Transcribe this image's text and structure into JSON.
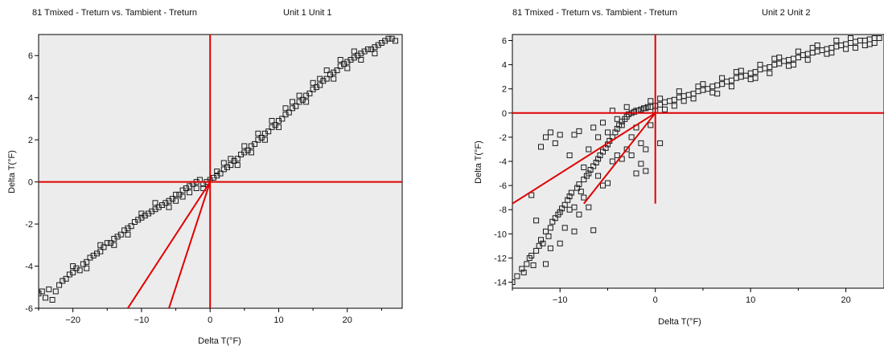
{
  "charts": [
    {
      "title": "81 Tmixed - Treturn  vs.  Tambient - Treturn",
      "unit_label": "Unit 1  Unit 1"
    },
    {
      "title": "81 Tmixed - Treturn  vs.  Tambient - Treturn",
      "unit_label": "Unit 2  Unit 2"
    }
  ],
  "colors": {
    "plot_background": "#ececec",
    "reference_lines": "#e00000",
    "markers": "#1a1a1a"
  },
  "chart_data": [
    {
      "type": "scatter",
      "title": "81 Tmixed - Treturn  vs.  Tambient - Treturn",
      "subtitle": "Unit 1  Unit 1",
      "xlabel": "Delta T(°F)",
      "ylabel": "Delta T(°F)",
      "xlim": [
        -25,
        28
      ],
      "ylim": [
        -6,
        7
      ],
      "xticks": [
        -20,
        -10,
        0,
        10,
        20
      ],
      "yticks": [
        -6,
        -4,
        -2,
        0,
        2,
        4,
        6
      ],
      "grid": false,
      "marker": "square-open",
      "reference_lines": [
        {
          "kind": "vertical",
          "x": 0
        },
        {
          "kind": "horizontal",
          "y": 0
        },
        {
          "kind": "segment",
          "from": [
            0,
            0
          ],
          "to": [
            -12,
            -6
          ]
        },
        {
          "kind": "segment",
          "from": [
            0,
            0
          ],
          "to": [
            -6,
            -6
          ]
        }
      ],
      "points": [
        [
          -25,
          -5.3
        ],
        [
          -24.5,
          -5.2
        ],
        [
          -24,
          -5.5
        ],
        [
          -23.5,
          -5.1
        ],
        [
          -23,
          -5.6
        ],
        [
          -22.5,
          -5.2
        ],
        [
          -22,
          -4.9
        ],
        [
          -21.5,
          -4.7
        ],
        [
          -21,
          -4.6
        ],
        [
          -20.5,
          -4.4
        ],
        [
          -20,
          -4.3
        ],
        [
          -19.5,
          -4.1
        ],
        [
          -19,
          -4.2
        ],
        [
          -18.5,
          -3.9
        ],
        [
          -18,
          -3.8
        ],
        [
          -17.5,
          -3.6
        ],
        [
          -17,
          -3.5
        ],
        [
          -16.5,
          -3.4
        ],
        [
          -16,
          -3.3
        ],
        [
          -15.5,
          -3.1
        ],
        [
          -15,
          -2.9
        ],
        [
          -14.5,
          -2.9
        ],
        [
          -14,
          -2.7
        ],
        [
          -13.5,
          -2.6
        ],
        [
          -13,
          -2.5
        ],
        [
          -12.5,
          -2.3
        ],
        [
          -12,
          -2.2
        ],
        [
          -11.5,
          -2.1
        ],
        [
          -11,
          -1.9
        ],
        [
          -10.5,
          -1.8
        ],
        [
          -10,
          -1.7
        ],
        [
          -9.5,
          -1.6
        ],
        [
          -9,
          -1.5
        ],
        [
          -8.5,
          -1.4
        ],
        [
          -8,
          -1.3
        ],
        [
          -7.5,
          -1.2
        ],
        [
          -7,
          -1.1
        ],
        [
          -6.5,
          -1.0
        ],
        [
          -6,
          -0.9
        ],
        [
          -5.5,
          -0.8
        ],
        [
          -5,
          -0.6
        ],
        [
          -4.5,
          -0.6
        ],
        [
          -4,
          -0.4
        ],
        [
          -3.5,
          -0.3
        ],
        [
          -3,
          -0.2
        ],
        [
          -2.5,
          -0.1
        ],
        [
          -2,
          0.0
        ],
        [
          -1.5,
          0.1
        ],
        [
          -1,
          -0.1
        ],
        [
          -0.5,
          0.0
        ],
        [
          0,
          0.1
        ],
        [
          0.5,
          0.2
        ],
        [
          1,
          0.3
        ],
        [
          1.5,
          0.4
        ],
        [
          2,
          0.6
        ],
        [
          2.5,
          0.7
        ],
        [
          3,
          0.8
        ],
        [
          3.5,
          1.0
        ],
        [
          4,
          1.1
        ],
        [
          4.5,
          1.3
        ],
        [
          5,
          1.4
        ],
        [
          5.5,
          1.5
        ],
        [
          6,
          1.7
        ],
        [
          6.5,
          1.8
        ],
        [
          7,
          2.0
        ],
        [
          7.5,
          2.1
        ],
        [
          8,
          2.3
        ],
        [
          8.5,
          2.4
        ],
        [
          9,
          2.6
        ],
        [
          9.5,
          2.7
        ],
        [
          10,
          2.9
        ],
        [
          10.5,
          3.0
        ],
        [
          11,
          3.2
        ],
        [
          11.5,
          3.3
        ],
        [
          12,
          3.5
        ],
        [
          12.5,
          3.6
        ],
        [
          13,
          3.8
        ],
        [
          13.5,
          3.9
        ],
        [
          14,
          4.1
        ],
        [
          14.5,
          4.2
        ],
        [
          15,
          4.4
        ],
        [
          15.5,
          4.5
        ],
        [
          16,
          4.6
        ],
        [
          16.5,
          4.8
        ],
        [
          17,
          4.9
        ],
        [
          17.5,
          5.1
        ],
        [
          18,
          5.2
        ],
        [
          18.5,
          5.3
        ],
        [
          19,
          5.5
        ],
        [
          19.5,
          5.6
        ],
        [
          20,
          5.7
        ],
        [
          20.5,
          5.8
        ],
        [
          21,
          5.9
        ],
        [
          21.5,
          6.0
        ],
        [
          22,
          6.1
        ],
        [
          22.5,
          6.2
        ],
        [
          23,
          6.3
        ],
        [
          23.5,
          6.3
        ],
        [
          24,
          6.4
        ],
        [
          24.5,
          6.5
        ],
        [
          25,
          6.6
        ],
        [
          25.5,
          6.7
        ],
        [
          26,
          6.8
        ],
        [
          26.5,
          6.8
        ],
        [
          27,
          6.7
        ],
        [
          -20,
          -4.0
        ],
        [
          -18,
          -4.1
        ],
        [
          -16,
          -3.0
        ],
        [
          -14,
          -3.0
        ],
        [
          -12,
          -2.5
        ],
        [
          -10,
          -1.5
        ],
        [
          -8,
          -1.0
        ],
        [
          -6,
          -1.2
        ],
        [
          -4,
          -0.7
        ],
        [
          -2,
          -0.3
        ],
        [
          2,
          0.9
        ],
        [
          4,
          0.8
        ],
        [
          6,
          1.4
        ],
        [
          8,
          2.0
        ],
        [
          10,
          2.6
        ],
        [
          12,
          3.8
        ],
        [
          14,
          3.8
        ],
        [
          16,
          4.9
        ],
        [
          18,
          4.9
        ],
        [
          20,
          5.4
        ],
        [
          22,
          5.8
        ],
        [
          24,
          6.1
        ],
        [
          1,
          0.5
        ],
        [
          3,
          1.1
        ],
        [
          5,
          1.7
        ],
        [
          7,
          2.3
        ],
        [
          9,
          2.9
        ],
        [
          11,
          3.5
        ],
        [
          13,
          4.1
        ],
        [
          15,
          4.7
        ],
        [
          17,
          5.3
        ],
        [
          19,
          5.8
        ],
        [
          21,
          6.2
        ],
        [
          -1,
          -0.3
        ],
        [
          -3,
          -0.5
        ],
        [
          -5,
          -0.9
        ]
      ]
    },
    {
      "type": "scatter",
      "title": "81 Tmixed - Treturn  vs.  Tambient - Treturn",
      "subtitle": "Unit 2  Unit 2",
      "xlabel": "Delta T(°F)",
      "ylabel": "Delta T(°F)",
      "xlim": [
        -15,
        24
      ],
      "ylim": [
        -14.5,
        6.5
      ],
      "xticks": [
        -10,
        0,
        10,
        20
      ],
      "yticks": [
        -14,
        -12,
        -10,
        -8,
        -6,
        -4,
        -2,
        0,
        2,
        4,
        6
      ],
      "grid": false,
      "marker": "square-open",
      "reference_lines": [
        {
          "kind": "vertical",
          "x": 0,
          "y_from": -7.5,
          "y_to": 6.5
        },
        {
          "kind": "horizontal",
          "y": 0
        },
        {
          "kind": "segment",
          "from": [
            0,
            0
          ],
          "to": [
            -15,
            -7.5
          ]
        },
        {
          "kind": "segment",
          "from": [
            0,
            0
          ],
          "to": [
            -7.5,
            -7.5
          ]
        }
      ],
      "points": [
        [
          -15,
          -14
        ],
        [
          -14.5,
          -13.5
        ],
        [
          -14,
          -12.9
        ],
        [
          -13.8,
          -13.2
        ],
        [
          -13.5,
          -12.5
        ],
        [
          -13.2,
          -12.0
        ],
        [
          -13,
          -11.8
        ],
        [
          -12.8,
          -12.6
        ],
        [
          -12.5,
          -11.4
        ],
        [
          -12.2,
          -11.0
        ],
        [
          -12,
          -10.5
        ],
        [
          -11.8,
          -10.8
        ],
        [
          -11.5,
          -9.8
        ],
        [
          -11.2,
          -10.2
        ],
        [
          -11,
          -9.5
        ],
        [
          -10.8,
          -9.0
        ],
        [
          -10.5,
          -8.7
        ],
        [
          -10.2,
          -8.4
        ],
        [
          -10,
          -8.2
        ],
        [
          -9.8,
          -7.9
        ],
        [
          -9.5,
          -7.6
        ],
        [
          -9.2,
          -7.2
        ],
        [
          -9,
          -6.9
        ],
        [
          -8.8,
          -6.6
        ],
        [
          -8.5,
          -7.8
        ],
        [
          -8.2,
          -6.2
        ],
        [
          -8,
          -5.9
        ],
        [
          -7.8,
          -6.5
        ],
        [
          -7.5,
          -5.5
        ],
        [
          -7.2,
          -5.2
        ],
        [
          -7,
          -5.0
        ],
        [
          -6.8,
          -4.7
        ],
        [
          -6.5,
          -4.4
        ],
        [
          -6.2,
          -4.1
        ],
        [
          -6,
          -3.8
        ],
        [
          -5.8,
          -3.5
        ],
        [
          -5.5,
          -3.2
        ],
        [
          -5.2,
          -2.9
        ],
        [
          -5,
          -2.6
        ],
        [
          -4.8,
          -2.3
        ],
        [
          -4.5,
          -2.0
        ],
        [
          -4.2,
          -1.6
        ],
        [
          -4,
          -1.3
        ],
        [
          -3.8,
          -1.0
        ],
        [
          -3.5,
          -0.7
        ],
        [
          -3.2,
          -0.5
        ],
        [
          -3,
          -0.3
        ],
        [
          -2.8,
          -0.1
        ],
        [
          -2.5,
          0.0
        ],
        [
          -2.2,
          0.1
        ],
        [
          -2,
          0.2
        ],
        [
          -1.8,
          0.2
        ],
        [
          -1.5,
          0.3
        ],
        [
          -1.2,
          0.4
        ],
        [
          -1,
          0.4
        ],
        [
          -0.8,
          0.5
        ],
        [
          -0.5,
          0.5
        ],
        [
          0,
          0.6
        ],
        [
          0.5,
          0.7
        ],
        [
          1,
          0.9
        ],
        [
          1.5,
          1.0
        ],
        [
          2,
          1.1
        ],
        [
          2.5,
          1.3
        ],
        [
          3,
          1.4
        ],
        [
          3.5,
          1.5
        ],
        [
          4,
          1.6
        ],
        [
          4.5,
          1.8
        ],
        [
          5,
          1.9
        ],
        [
          5.5,
          2.0
        ],
        [
          6,
          2.2
        ],
        [
          6.5,
          2.3
        ],
        [
          7,
          2.4
        ],
        [
          7.5,
          2.6
        ],
        [
          8,
          2.7
        ],
        [
          8.5,
          2.9
        ],
        [
          9,
          3.0
        ],
        [
          9.5,
          3.1
        ],
        [
          10,
          3.3
        ],
        [
          10.5,
          3.4
        ],
        [
          11,
          3.6
        ],
        [
          11.5,
          3.7
        ],
        [
          12,
          3.8
        ],
        [
          12.5,
          4.0
        ],
        [
          13,
          4.1
        ],
        [
          13.5,
          4.3
        ],
        [
          14,
          4.4
        ],
        [
          14.5,
          4.5
        ],
        [
          15,
          4.6
        ],
        [
          15.5,
          4.8
        ],
        [
          16,
          4.9
        ],
        [
          16.5,
          5.0
        ],
        [
          17,
          5.1
        ],
        [
          17.5,
          5.2
        ],
        [
          18,
          5.3
        ],
        [
          18.5,
          5.4
        ],
        [
          19,
          5.5
        ],
        [
          19.5,
          5.6
        ],
        [
          20,
          5.7
        ],
        [
          20.5,
          5.8
        ],
        [
          21,
          5.9
        ],
        [
          21.5,
          6.0
        ],
        [
          22,
          6.0
        ],
        [
          22.5,
          6.1
        ],
        [
          23,
          6.2
        ],
        [
          23.5,
          6.2
        ],
        [
          -12,
          -2.8
        ],
        [
          -11.5,
          -2.0
        ],
        [
          -11,
          -1.6
        ],
        [
          -10.5,
          -2.5
        ],
        [
          -10,
          -1.8
        ],
        [
          -9,
          -3.5
        ],
        [
          -8.5,
          -1.8
        ],
        [
          -8,
          -1.5
        ],
        [
          -7.5,
          -4.5
        ],
        [
          -7,
          -3.0
        ],
        [
          -6.5,
          -1.2
        ],
        [
          -6,
          -2.0
        ],
        [
          -5.5,
          -0.8
        ],
        [
          -5,
          -1.6
        ],
        [
          -4.5,
          0.2
        ],
        [
          -4,
          -0.5
        ],
        [
          -3.5,
          -1.0
        ],
        [
          -3,
          0.5
        ],
        [
          -2.5,
          -2.0
        ],
        [
          -2,
          -1.2
        ],
        [
          -1.5,
          -2.5
        ],
        [
          -1,
          -3.0
        ],
        [
          -0.5,
          -1.0
        ],
        [
          0.5,
          -2.5
        ],
        [
          -13,
          -6.8
        ],
        [
          -12.5,
          -8.9
        ],
        [
          -11.5,
          -12.5
        ],
        [
          -11,
          -11.2
        ],
        [
          -10,
          -10.8
        ],
        [
          -9.5,
          -9.5
        ],
        [
          -9,
          -8.0
        ],
        [
          -8.5,
          -9.8
        ],
        [
          -8,
          -8.4
        ],
        [
          -7.5,
          -7.0
        ],
        [
          -7,
          -7.8
        ],
        [
          -6.5,
          -9.7
        ],
        [
          -6,
          -5.2
        ],
        [
          -5.5,
          -6.0
        ],
        [
          -5,
          -5.8
        ],
        [
          -4.5,
          -4.0
        ],
        [
          -4,
          -3.5
        ],
        [
          -3.5,
          -3.8
        ],
        [
          -3,
          -3.0
        ],
        [
          -2.5,
          -3.5
        ],
        [
          -2,
          -5.0
        ],
        [
          -1.5,
          -4.2
        ],
        [
          -1,
          -4.8
        ],
        [
          1,
          0.3
        ],
        [
          2,
          0.6
        ],
        [
          3,
          1.0
        ],
        [
          4,
          1.2
        ],
        [
          5,
          2.4
        ],
        [
          6,
          1.7
        ],
        [
          7,
          2.9
        ],
        [
          8,
          2.2
        ],
        [
          9,
          3.5
        ],
        [
          10,
          2.8
        ],
        [
          11,
          4.0
        ],
        [
          12,
          3.3
        ],
        [
          13,
          4.6
        ],
        [
          14,
          3.9
        ],
        [
          15,
          5.1
        ],
        [
          16,
          4.4
        ],
        [
          17,
          5.6
        ],
        [
          18,
          4.9
        ],
        [
          19,
          6.0
        ],
        [
          20,
          5.3
        ],
        [
          21,
          5.4
        ],
        [
          22,
          5.6
        ],
        [
          23,
          5.8
        ],
        [
          2.5,
          1.8
        ],
        [
          4.5,
          2.2
        ],
        [
          6.5,
          1.6
        ],
        [
          8.5,
          3.4
        ],
        [
          10.5,
          2.9
        ],
        [
          12.5,
          4.5
        ],
        [
          14.5,
          4.0
        ],
        [
          16.5,
          5.4
        ],
        [
          18.5,
          5.0
        ],
        [
          20.5,
          6.2
        ],
        [
          22.5,
          5.7
        ],
        [
          -0.5,
          1.0
        ],
        [
          0,
          0.2
        ],
        [
          0.5,
          1.2
        ]
      ]
    }
  ]
}
